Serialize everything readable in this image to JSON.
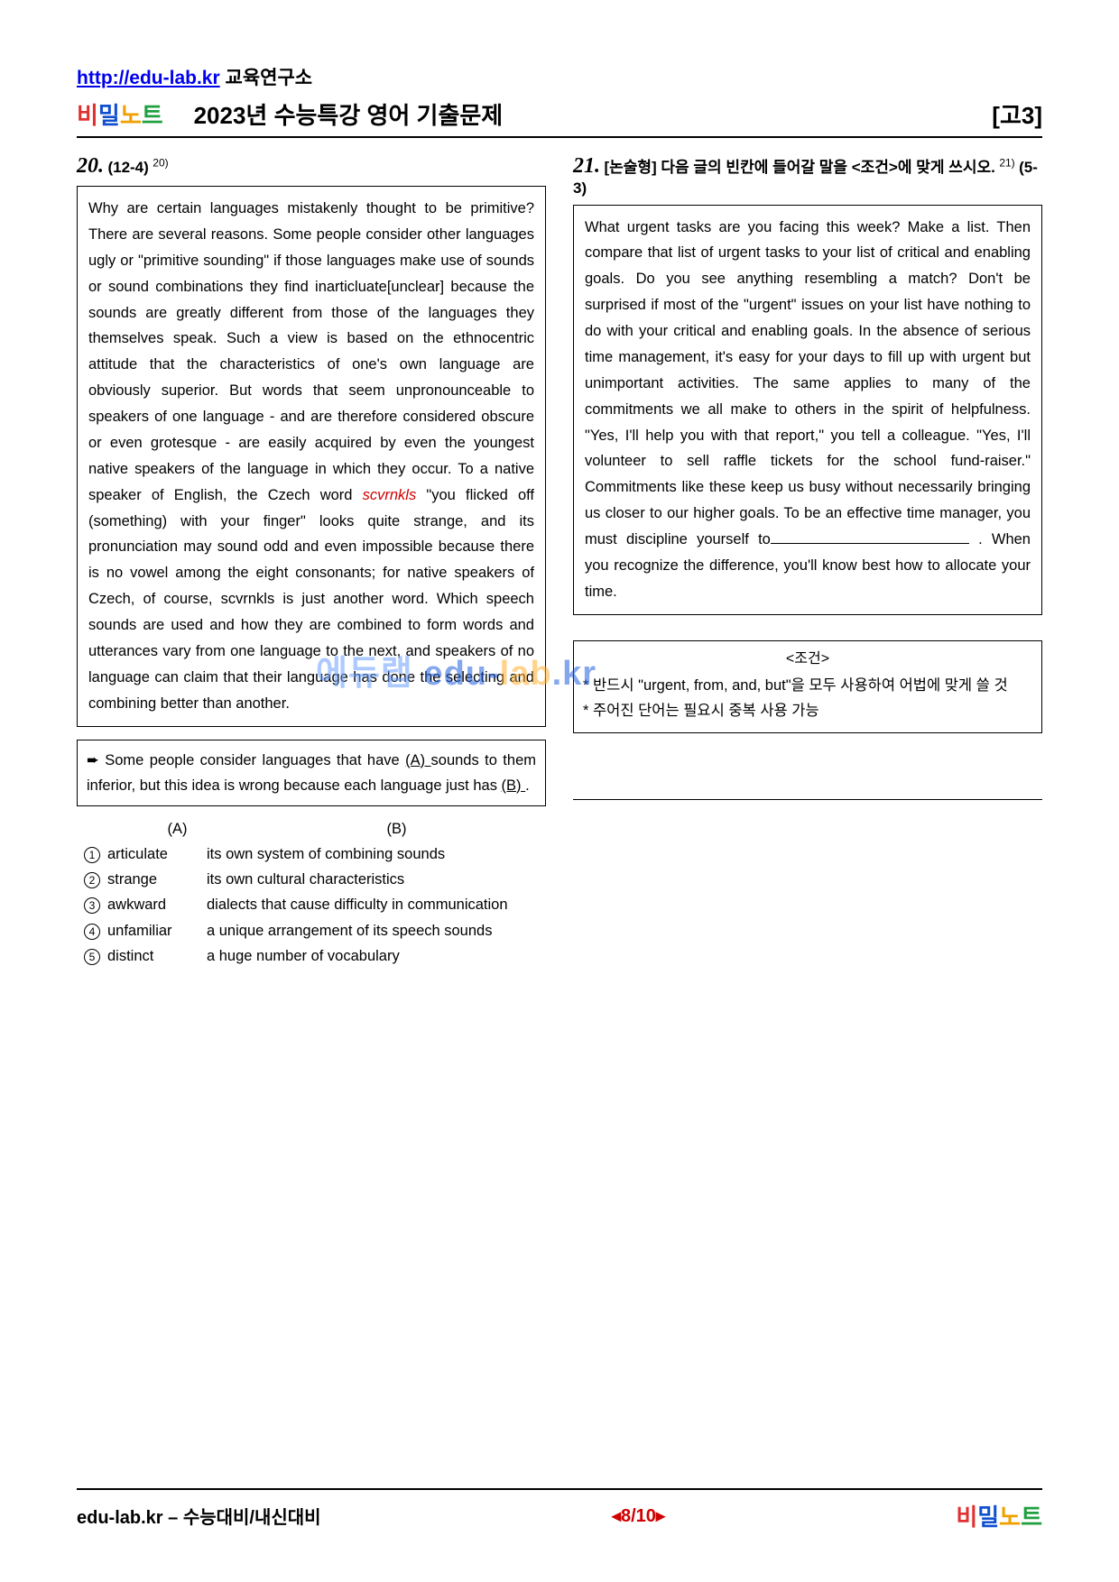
{
  "header": {
    "url": "http://edu-lab.kr",
    "url_suffix": "  교육연구소",
    "logo": {
      "c1": "비",
      "c2": "밀",
      "c3": "노",
      "c4": "트"
    },
    "title": "2023년 수능특강 영어 기출문제",
    "grade": "[고3]"
  },
  "watermark": {
    "a": "에듀랩",
    "b_prefix": " edu-",
    "b_mid": "lab",
    "b_suffix": ".kr"
  },
  "q20": {
    "num": "20.",
    "ref": "(12-4)",
    "sup": "20)",
    "passage": "Why are certain languages mistakenly thought to be primitive? There are several reasons. Some people consider other languages ugly or \"primitive sounding\" if those languages make use of sounds or sound combinations they find inarticluate[unclear] because the sounds are greatly different from those of the languages they themselves speak. Such a view is based on the ethnocentric attitude that the characteristics of one's own language are obviously superior. But words that seem unpronounceable to speakers of one language - and are therefore considered obscure or even grotesque - are easily acquired by even the youngest native speakers of the language in which they occur. To a native speaker of English, the Czech word ",
    "czech": "scvrnkls",
    "passage2": " \"you flicked off (something) with your finger\" looks quite strange, and its pronunciation may sound odd and even impossible because there is no vowel among the eight consonants; for native speakers of Czech, of course, scvrnkls is just another word. Which speech sounds are used and how they are combined to form words and utterances vary from one language to the next, and speakers of no language can claim that their language has done the selecting and combining better than another.",
    "summary_pre": "➨   Some people consider languages that have ",
    "summary_a": "(A)    ",
    "summary_mid": "sounds to them inferior, but this idea is wrong because each language just has ",
    "summary_b": "  (B)    ",
    "summary_end": ".",
    "col_a": "(A)",
    "col_b": "(B)",
    "choices": [
      {
        "n": "1",
        "a": "articulate",
        "b": "its own system of combining sounds"
      },
      {
        "n": "2",
        "a": "strange",
        "b": "its own cultural characteristics"
      },
      {
        "n": "3",
        "a": "awkward",
        "b": "dialects that cause difficulty in communication"
      },
      {
        "n": "4",
        "a": "unfamiliar",
        "b": "a unique arrangement of its speech sounds"
      },
      {
        "n": "5",
        "a": "distinct",
        "b": "a huge number of vocabulary"
      }
    ]
  },
  "q21": {
    "num": "21.",
    "title_pre": "[논술형] 다음 글의 빈칸에 들어갈 말을 <조건>에 맞게 쓰시오.",
    "sup": "21)",
    "ref": "(5-3)",
    "passage_pre": " What urgent tasks are you facing this week? Make a list. Then compare that list of urgent tasks to your list of critical and enabling goals. Do you see anything resembling a match? Don't be surprised if most of the \"urgent\" issues on your list have nothing to do with your critical and enabling goals. In the absence of serious time management, it's easy for your days to fill up with urgent but unimportant activities. The same applies to many of the commitments we all make to others in the spirit of helpfulness. \"Yes, I'll help you with that report,\" you tell a colleague. \"Yes, I'll volunteer to sell raffle tickets for the school fund-raiser.\" Commitments like these keep us busy without necessarily bringing us closer to our higher goals. To be an effective time manager, you must discipline yourself to",
    "passage_post": " . When you recognize the difference, you'll know best how to allocate your time.",
    "cond_title": "<조건>",
    "cond1": "* 반드시 \"urgent, from, and, but\"을 모두 사용하여 어법에 맞게 쓸 것",
    "cond2": "* 주어진 단어는 필요시 중복 사용 가능"
  },
  "footer": {
    "left": "edu-lab.kr – 수능대비/내신대비",
    "center": "◂8/10▸"
  }
}
